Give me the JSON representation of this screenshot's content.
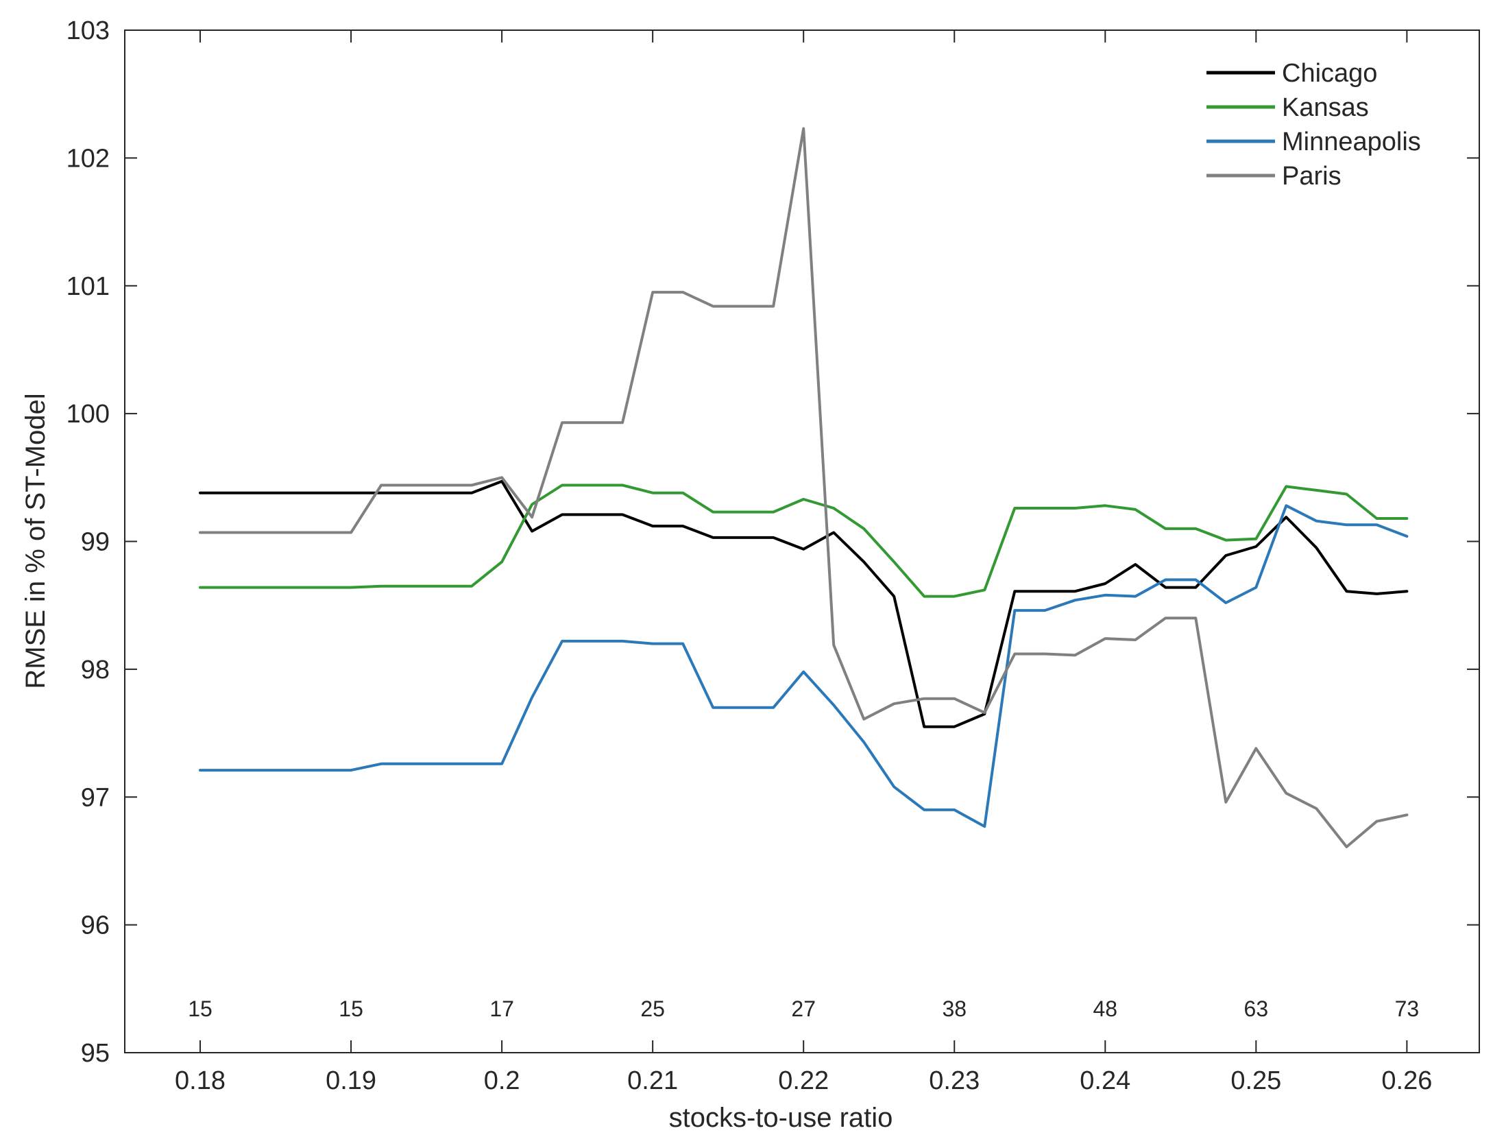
{
  "chart_data": {
    "type": "line",
    "title": "",
    "xlabel": "stocks-to-use ratio",
    "ylabel": "RMSE in % of ST-Model",
    "xlim": [
      0.175,
      0.2648
    ],
    "ylim": [
      95,
      103
    ],
    "xticks": [
      0.18,
      0.19,
      0.2,
      0.21,
      0.22,
      0.23,
      0.24,
      0.25,
      0.26
    ],
    "xtick_labels": [
      "0.18",
      "0.19",
      "0.2",
      "0.21",
      "0.22",
      "0.23",
      "0.24",
      "0.25",
      "0.26"
    ],
    "yticks": [
      95,
      96,
      97,
      98,
      99,
      100,
      101,
      102,
      103
    ],
    "ytick_labels": [
      "95",
      "96",
      "97",
      "98",
      "99",
      "100",
      "101",
      "102",
      "103"
    ],
    "grid": false,
    "legend_position": "top-right",
    "annotations": {
      "y": 95.35,
      "items": [
        {
          "x": 0.18,
          "text": "15"
        },
        {
          "x": 0.19,
          "text": "15"
        },
        {
          "x": 0.2,
          "text": "17"
        },
        {
          "x": 0.21,
          "text": "25"
        },
        {
          "x": 0.22,
          "text": "27"
        },
        {
          "x": 0.23,
          "text": "38"
        },
        {
          "x": 0.24,
          "text": "48"
        },
        {
          "x": 0.25,
          "text": "63"
        },
        {
          "x": 0.26,
          "text": "73"
        }
      ]
    },
    "x": [
      0.18,
      0.182,
      0.184,
      0.186,
      0.188,
      0.19,
      0.192,
      0.194,
      0.196,
      0.198,
      0.2,
      0.202,
      0.204,
      0.206,
      0.208,
      0.21,
      0.212,
      0.214,
      0.216,
      0.218,
      0.22,
      0.222,
      0.224,
      0.226,
      0.228,
      0.23,
      0.232,
      0.234,
      0.236,
      0.238,
      0.24,
      0.242,
      0.244,
      0.246,
      0.248,
      0.25,
      0.252,
      0.254,
      0.256,
      0.258,
      0.26
    ],
    "series": [
      {
        "name": "Chicago",
        "color": "#000000",
        "values": [
          99.38,
          99.38,
          99.38,
          99.38,
          99.38,
          99.38,
          99.38,
          99.38,
          99.38,
          99.38,
          99.47,
          99.08,
          99.21,
          99.21,
          99.21,
          99.12,
          99.12,
          99.03,
          99.03,
          99.03,
          98.94,
          99.07,
          98.84,
          98.57,
          97.55,
          97.55,
          97.65,
          98.61,
          98.61,
          98.61,
          98.67,
          98.82,
          98.64,
          98.64,
          98.89,
          98.96,
          99.19,
          98.95,
          98.61,
          98.59,
          98.61
        ]
      },
      {
        "name": "Kansas",
        "color": "#339933",
        "values": [
          98.64,
          98.64,
          98.64,
          98.64,
          98.64,
          98.64,
          98.65,
          98.65,
          98.65,
          98.65,
          98.84,
          99.29,
          99.44,
          99.44,
          99.44,
          99.38,
          99.38,
          99.23,
          99.23,
          99.23,
          99.33,
          99.26,
          99.1,
          98.84,
          98.57,
          98.57,
          98.62,
          99.26,
          99.26,
          99.26,
          99.28,
          99.25,
          99.1,
          99.1,
          99.01,
          99.02,
          99.43,
          99.4,
          99.37,
          99.18,
          99.18
        ]
      },
      {
        "name": "Minneapolis",
        "color": "#2b79b9",
        "values": [
          97.21,
          97.21,
          97.21,
          97.21,
          97.21,
          97.21,
          97.26,
          97.26,
          97.26,
          97.26,
          97.26,
          97.78,
          98.22,
          98.22,
          98.22,
          98.2,
          98.2,
          97.7,
          97.7,
          97.7,
          97.98,
          97.72,
          97.43,
          97.08,
          96.9,
          96.9,
          96.77,
          98.46,
          98.46,
          98.54,
          98.58,
          98.57,
          98.7,
          98.7,
          98.52,
          98.64,
          99.28,
          99.16,
          99.13,
          99.13,
          99.04
        ]
      },
      {
        "name": "Paris",
        "color": "#808080",
        "values": [
          99.07,
          99.07,
          99.07,
          99.07,
          99.07,
          99.07,
          99.44,
          99.44,
          99.44,
          99.44,
          99.5,
          99.19,
          99.93,
          99.93,
          99.93,
          100.95,
          100.95,
          100.84,
          100.84,
          100.84,
          102.23,
          98.19,
          97.61,
          97.73,
          97.77,
          97.77,
          97.66,
          98.12,
          98.12,
          98.11,
          98.24,
          98.23,
          98.4,
          98.4,
          96.96,
          97.38,
          97.03,
          96.91,
          96.61,
          96.81,
          96.86
        ]
      }
    ]
  }
}
